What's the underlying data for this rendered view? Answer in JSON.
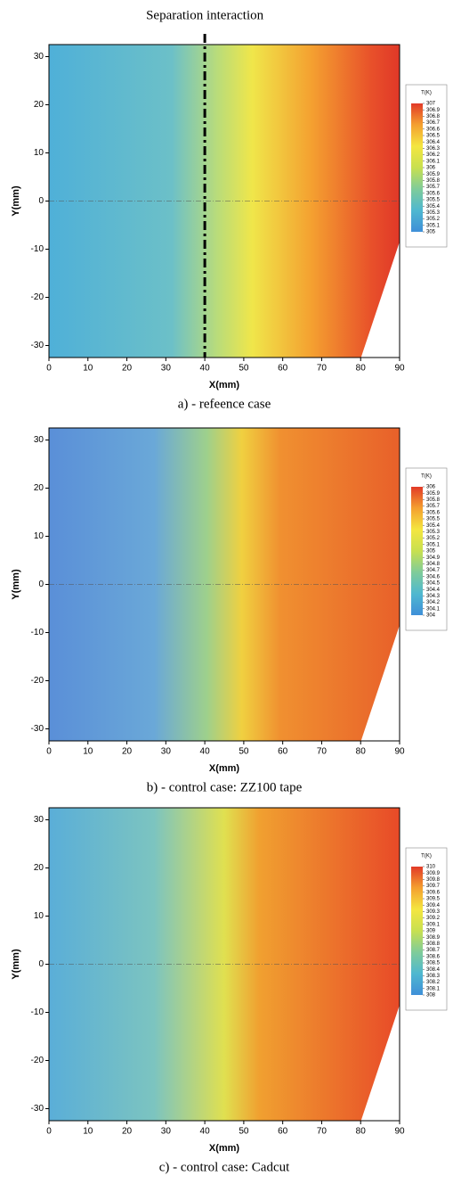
{
  "chart_data": [
    {
      "type": "heatmap",
      "caption": "a) - refeence case",
      "xlabel": "X(mm)",
      "ylabel": "Y(mm)",
      "xlim": [
        0,
        90
      ],
      "ylim": [
        -32.5,
        32.5
      ],
      "xticks": [
        0,
        10,
        20,
        30,
        40,
        50,
        60,
        70,
        80,
        90
      ],
      "yticks": [
        -30,
        -20,
        -10,
        0,
        10,
        20,
        30
      ],
      "annotation": {
        "text": "Separation interaction",
        "x": 40
      },
      "colorbar_title": "T(K)",
      "clim": [
        305,
        307
      ],
      "colorbar_ticks": [
        307,
        306.9,
        306.8,
        306.7,
        306.6,
        306.5,
        306.4,
        306.3,
        306.2,
        306.1,
        306,
        305.9,
        305.8,
        305.7,
        305.6,
        305.5,
        305.4,
        305.3,
        305.2,
        305.1,
        305
      ],
      "colormap": [
        "#3f8fd8",
        "#4fb8d0",
        "#7fcc9a",
        "#c8e050",
        "#f4e640",
        "#f4a030",
        "#e23a28"
      ]
    },
    {
      "type": "heatmap",
      "caption": "b) - control case: ZZ100 tape",
      "xlabel": "X(mm)",
      "ylabel": "Y(mm)",
      "xlim": [
        0,
        90
      ],
      "ylim": [
        -32.5,
        32.5
      ],
      "xticks": [
        0,
        10,
        20,
        30,
        40,
        50,
        60,
        70,
        80,
        90
      ],
      "yticks": [
        -30,
        -20,
        -10,
        0,
        10,
        20,
        30
      ],
      "colorbar_title": "T(K)",
      "clim": [
        304,
        306
      ],
      "colorbar_ticks": [
        306,
        305.9,
        305.8,
        305.7,
        305.6,
        305.5,
        305.4,
        305.3,
        305.2,
        305.1,
        305,
        304.9,
        304.8,
        304.7,
        304.6,
        304.5,
        304.4,
        304.3,
        304.2,
        304.1,
        304
      ],
      "colormap": [
        "#3f8fd8",
        "#4fb8d0",
        "#7fcc9a",
        "#c8e050",
        "#f4e640",
        "#f4a030",
        "#e23a28"
      ]
    },
    {
      "type": "heatmap",
      "caption": "c) - control case: Cadcut",
      "xlabel": "X(mm)",
      "ylabel": "Y(mm)",
      "xlim": [
        0,
        90
      ],
      "ylim": [
        -32.5,
        32.5
      ],
      "xticks": [
        0,
        10,
        20,
        30,
        40,
        50,
        60,
        70,
        80,
        90
      ],
      "yticks": [
        -30,
        -20,
        -10,
        0,
        10,
        20,
        30
      ],
      "colorbar_title": "T(K)",
      "clim": [
        308,
        310
      ],
      "colorbar_ticks": [
        310,
        309.9,
        309.8,
        309.7,
        309.6,
        309.5,
        309.4,
        309.3,
        309.2,
        309.1,
        309,
        308.9,
        308.8,
        308.7,
        308.6,
        308.5,
        308.4,
        308.3,
        308.2,
        308.1,
        308
      ],
      "colormap": [
        "#3f8fd8",
        "#4fb8d0",
        "#7fcc9a",
        "#c8e050",
        "#f4e640",
        "#f4a030",
        "#e23a28"
      ]
    }
  ]
}
